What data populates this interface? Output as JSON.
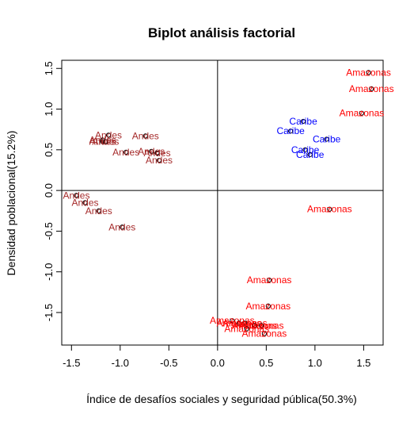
{
  "chart_data": {
    "type": "scatter",
    "title": "Biplot análisis factorial",
    "xlabel": "Índice de desafíos sociales y seguridad pública(50.3%)",
    "ylabel": "Densidad poblacional(15.2%)",
    "xlim": [
      -1.6,
      1.7
    ],
    "ylim": [
      -1.9,
      1.6
    ],
    "xticks": [
      "-1.5",
      "-1.0",
      "-0.5",
      "0.0",
      "0.5",
      "1.0",
      "1.5"
    ],
    "yticks": [
      "-1.5",
      "-1.0",
      "-0.5",
      "0.0",
      "0.5",
      "1.0",
      "1.5"
    ],
    "reference_lines": {
      "x": 0,
      "y": 0
    },
    "colors": {
      "Andes": "#a52a2a",
      "Caribe": "#0000ff",
      "Amazonas": "#ff0000"
    },
    "points": [
      {
        "label": "Andes",
        "x": -1.12,
        "y": 0.68
      },
      {
        "label": "Andes",
        "x": -1.18,
        "y": 0.62
      },
      {
        "label": "Andes",
        "x": -1.18,
        "y": 0.6
      },
      {
        "label": "Andes",
        "x": -1.15,
        "y": 0.6
      },
      {
        "label": "Andes",
        "x": -0.74,
        "y": 0.67
      },
      {
        "label": "Andes",
        "x": -0.94,
        "y": 0.47
      },
      {
        "label": "Andes",
        "x": -0.68,
        "y": 0.48
      },
      {
        "label": "Andes",
        "x": -0.62,
        "y": 0.46
      },
      {
        "label": "Andes",
        "x": -0.6,
        "y": 0.37
      },
      {
        "label": "Andes",
        "x": -1.45,
        "y": -0.06
      },
      {
        "label": "Andes",
        "x": -1.36,
        "y": -0.15
      },
      {
        "label": "Andes",
        "x": -1.22,
        "y": -0.25
      },
      {
        "label": "Andes",
        "x": -0.98,
        "y": -0.45
      },
      {
        "label": "Caribe",
        "x": 0.88,
        "y": 0.85
      },
      {
        "label": "Caribe",
        "x": 0.75,
        "y": 0.73
      },
      {
        "label": "Caribe",
        "x": 1.12,
        "y": 0.63
      },
      {
        "label": "Caribe",
        "x": 0.9,
        "y": 0.5
      },
      {
        "label": "Caribe",
        "x": 0.95,
        "y": 0.44
      },
      {
        "label": "Amazonas",
        "x": 1.55,
        "y": 1.45
      },
      {
        "label": "Amazonas",
        "x": 1.58,
        "y": 1.25
      },
      {
        "label": "Amazonas",
        "x": 1.48,
        "y": 0.95
      },
      {
        "label": "Amazonas",
        "x": 1.15,
        "y": -0.23
      },
      {
        "label": "Amazonas",
        "x": 0.53,
        "y": -1.1
      },
      {
        "label": "Amazonas",
        "x": 0.52,
        "y": -1.42
      },
      {
        "label": "Amazonas",
        "x": 0.15,
        "y": -1.6
      },
      {
        "label": "Amazonas",
        "x": 0.22,
        "y": -1.63
      },
      {
        "label": "Amazonas",
        "x": 0.28,
        "y": -1.63
      },
      {
        "label": "Amazonas",
        "x": 0.38,
        "y": -1.66
      },
      {
        "label": "Amazonas",
        "x": 0.45,
        "y": -1.66
      },
      {
        "label": "Amazonas",
        "x": 0.3,
        "y": -1.7
      },
      {
        "label": "Amazonas",
        "x": 0.48,
        "y": -1.76
      }
    ]
  }
}
